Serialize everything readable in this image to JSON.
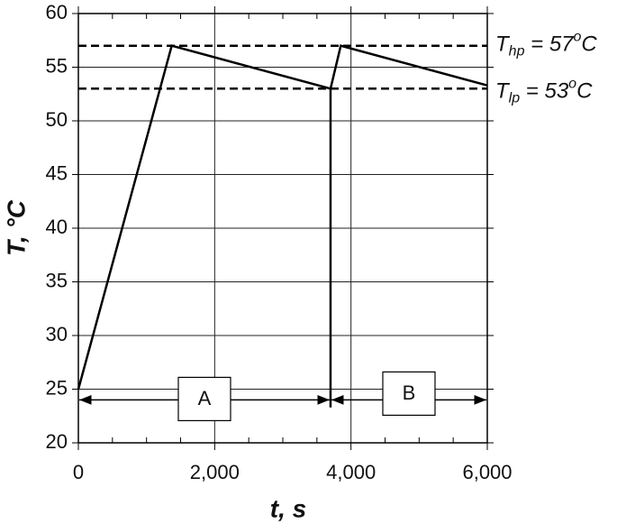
{
  "chart_data": {
    "type": "line",
    "xlabel": "t, s",
    "ylabel": "T, °C",
    "x": [
      0,
      1370,
      3700,
      3850,
      6000
    ],
    "series": [
      {
        "color": "#000000",
        "values": [
          25,
          57,
          53,
          57,
          53.3
        ]
      }
    ],
    "xlim": [
      0,
      6000
    ],
    "ylim": [
      20,
      60
    ],
    "xticks": [
      0,
      {
        "value": 2000,
        "label": "2,000"
      },
      {
        "value": 4000,
        "label": "4,000"
      },
      {
        "value": 6000,
        "label": "6,000"
      }
    ],
    "xminor": [
      500,
      1000,
      1500,
      2500,
      3000,
      3500,
      4500,
      5000,
      5500
    ],
    "yticks": [
      20,
      25,
      30,
      35,
      40,
      45,
      50,
      55,
      60
    ],
    "grid": true,
    "thresholds": [
      {
        "value": 57,
        "symbol": "T",
        "sub": "hp",
        "text": " = 57",
        "sup": "o",
        "unit": "C"
      },
      {
        "value": 53,
        "symbol": "T",
        "sub": "lp",
        "text": " = 53",
        "sup": "o",
        "unit": "C"
      }
    ],
    "marker": {
      "x": 3700,
      "from": 23.3,
      "to": 53
    },
    "phase_arrow_y": 24,
    "phases": [
      {
        "label": "A",
        "start": 0,
        "end": 3700
      },
      {
        "label": "B",
        "start": 3700,
        "end": 6000
      }
    ]
  }
}
